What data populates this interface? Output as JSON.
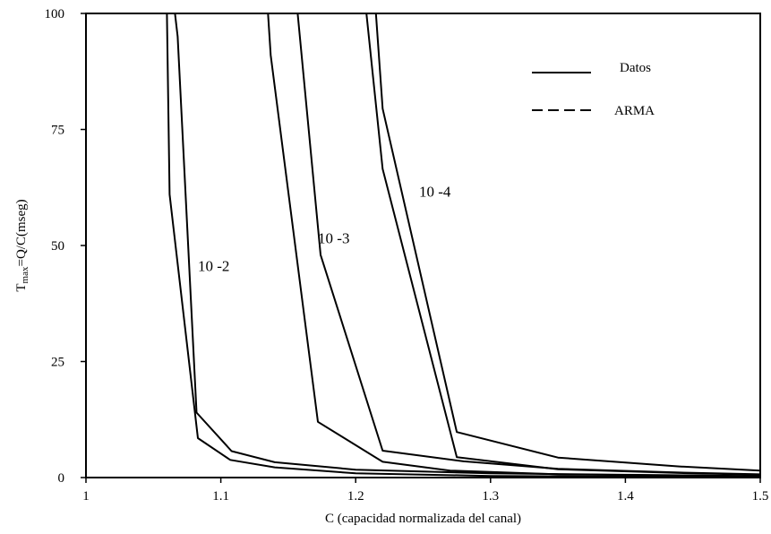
{
  "chart_data": {
    "type": "line",
    "xlabel": "C (capacidad normalizada del canal)",
    "ylabel": "Tmax=Q/C(mseg)",
    "ylabel_main": "T",
    "ylabel_sub": "max",
    "ylabel_rest": "=Q/C(mseg)",
    "xlim": [
      1,
      1.5
    ],
    "ylim": [
      0,
      100
    ],
    "x_ticks": [
      1,
      1.1,
      1.2,
      1.3,
      1.4,
      1.5
    ],
    "x_tick_labels": [
      "1",
      "1.1",
      "1.2",
      "1.3",
      "1.4",
      "1.5"
    ],
    "y_ticks": [
      0,
      25,
      50,
      75,
      100
    ],
    "y_tick_labels": [
      "0",
      "25",
      "50",
      "75",
      "100"
    ],
    "legend": {
      "position": "top-right",
      "entries": [
        {
          "label": "Datos",
          "style": "solid"
        },
        {
          "label": "ARMA",
          "style": "dashed"
        }
      ]
    },
    "annotations": [
      {
        "text": "10 -2",
        "x": 1.083,
        "y": 44.5
      },
      {
        "text": "10 -3",
        "x": 1.172,
        "y": 50.5
      },
      {
        "text": "10 -4",
        "x": 1.247,
        "y": 60.5
      }
    ],
    "series": [
      {
        "group": "10 -2",
        "points": [
          [
            1.06,
            100
          ],
          [
            1.062,
            61
          ],
          [
            1.083,
            8.5
          ],
          [
            1.107,
            3.8
          ],
          [
            1.14,
            2.2
          ],
          [
            1.2,
            0.9
          ],
          [
            1.3,
            0.35
          ],
          [
            1.5,
            0.1
          ]
        ]
      },
      {
        "group": "10 -2",
        "points": [
          [
            1.066,
            100
          ],
          [
            1.068,
            95
          ],
          [
            1.082,
            14
          ],
          [
            1.108,
            5.7
          ],
          [
            1.14,
            3.3
          ],
          [
            1.2,
            1.7
          ],
          [
            1.3,
            0.9
          ],
          [
            1.5,
            0.3
          ]
        ]
      },
      {
        "group": "10 -3",
        "points": [
          [
            1.135,
            100
          ],
          [
            1.137,
            91
          ],
          [
            1.172,
            12
          ],
          [
            1.22,
            3.4
          ],
          [
            1.27,
            1.5
          ],
          [
            1.35,
            0.7
          ],
          [
            1.5,
            0.25
          ]
        ]
      },
      {
        "group": "10 -3",
        "points": [
          [
            1.157,
            100
          ],
          [
            1.174,
            48
          ],
          [
            1.22,
            5.8
          ],
          [
            1.28,
            3.5
          ],
          [
            1.35,
            1.9
          ],
          [
            1.45,
            1.0
          ],
          [
            1.5,
            0.7
          ]
        ]
      },
      {
        "group": "10 -4",
        "points": [
          [
            1.208,
            100
          ],
          [
            1.22,
            66.5
          ],
          [
            1.275,
            4.4
          ],
          [
            1.35,
            1.8
          ],
          [
            1.45,
            0.9
          ],
          [
            1.5,
            0.6
          ]
        ]
      },
      {
        "group": "10 -4",
        "points": [
          [
            1.215,
            100
          ],
          [
            1.22,
            79.5
          ],
          [
            1.275,
            9.8
          ],
          [
            1.35,
            4.3
          ],
          [
            1.44,
            2.4
          ],
          [
            1.5,
            1.5
          ]
        ]
      }
    ]
  }
}
